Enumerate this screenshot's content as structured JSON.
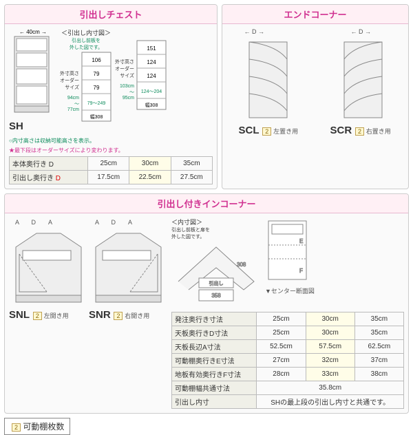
{
  "sections": {
    "sh": {
      "title": "引出しチェスト",
      "code": "SH",
      "width_label": "40cm",
      "interior_title": "＜引出し内寸図＞",
      "interior_sub": "引出し前板を\n外した図です。",
      "left_note": "外寸高さ\nオーダー\nサイズ",
      "left_range": "94cm\n〜\n77cm",
      "right_note": "外寸高さ\nオーダー\nサイズ",
      "right_range": "103cm\n〜\n95cm",
      "interior_A": [
        "106",
        "79",
        "79",
        "79〜249",
        "幅308"
      ],
      "interior_B": [
        "151",
        "124",
        "124",
        "124〜204",
        "幅308"
      ],
      "note1": "○内寸高さは収納可能高さを表示。",
      "note2": "★最下段はオーダーサイズにより変わります。",
      "spec": {
        "rows": [
          {
            "h": "本体奥行き D",
            "v": [
              "25cm",
              "30cm",
              "35cm"
            ]
          },
          {
            "h": "引出し奥行き D",
            "v": [
              "17.5cm",
              "22.5cm",
              "27.5cm"
            ],
            "hred": true
          }
        ]
      }
    },
    "corner": {
      "title": "エンドコーナー",
      "l": {
        "code": "SCL",
        "badge": "2",
        "sub": "左置き用"
      },
      "r": {
        "code": "SCR",
        "badge": "2",
        "sub": "右置き用"
      }
    },
    "incorner": {
      "title": "引出し付きインコーナー",
      "l": {
        "code": "SNL",
        "badge": "2",
        "sub": "左開き用"
      },
      "r": {
        "code": "SNR",
        "badge": "2",
        "sub": "右開き用"
      },
      "interior_title": "＜内寸図＞",
      "interior_sub": "引出し前板と扉を\n外した図です。",
      "side_label": "▼センター断面図",
      "dim1": "308",
      "dim2": "358",
      "drawer": "引出し",
      "spec": {
        "rows": [
          {
            "h": "発注奥行き寸法",
            "v": [
              "25cm",
              "30cm",
              "35cm"
            ]
          },
          {
            "h": "天板奥行きD寸法",
            "v": [
              "25cm",
              "30cm",
              "35cm"
            ]
          },
          {
            "h": "天板長辺A寸法",
            "v": [
              "52.5cm",
              "57.5cm",
              "62.5cm"
            ]
          },
          {
            "h": "可動棚奥行きE寸法",
            "v": [
              "27cm",
              "32cm",
              "37cm"
            ]
          },
          {
            "h": "地板有効奥行きF寸法",
            "v": [
              "28cm",
              "33cm",
              "38cm"
            ]
          },
          {
            "h": "可動棚幅共通寸法",
            "v": [
              "35.8cm"
            ],
            "span": 3
          },
          {
            "h": "引出し内寸",
            "v": [
              "SHの最上段の引出し内寸と共通です。"
            ],
            "span": 3
          }
        ]
      }
    }
  },
  "legend": {
    "badge": "2",
    "text": "可動棚枚数"
  }
}
